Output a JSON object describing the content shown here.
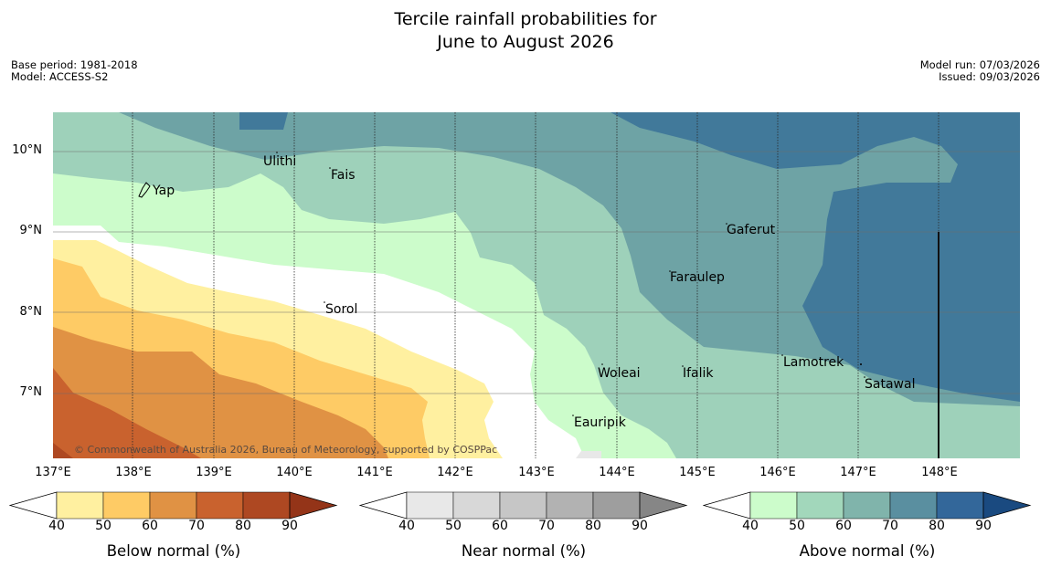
{
  "title_line1": "Tercile rainfall probabilities for",
  "title_line2": "June to August 2026",
  "base_period": "Base period: 1981-2018",
  "model": "Model: ACCESS-S2",
  "model_run": "Model run: 07/03/2026",
  "issued": "Issued: 09/03/2026",
  "copyright": "© Commonwealth of Australia 2026, Bureau of Meteorology, supported by COSPPac",
  "lat_labels": [
    "10°N",
    "9°N",
    "8°N",
    "7°N"
  ],
  "lon_labels": [
    "137°E",
    "138°E",
    "139°E",
    "140°E",
    "141°E",
    "142°E",
    "143°E",
    "144°E",
    "145°E",
    "146°E",
    "147°E",
    "148°E"
  ],
  "places": [
    {
      "name": "Ulithi"
    },
    {
      "name": "Yap"
    },
    {
      "name": "Fais"
    },
    {
      "name": "Gaferut"
    },
    {
      "name": "Faraulep"
    },
    {
      "name": "Sorol"
    },
    {
      "name": "Lamotrek"
    },
    {
      "name": "Woleai"
    },
    {
      "name": "Ifalik"
    },
    {
      "name": "Satawal"
    },
    {
      "name": "Eauripik"
    }
  ],
  "legends": [
    {
      "title": "Below normal (%)",
      "ticks": [
        "40",
        "50",
        "60",
        "70",
        "80",
        "90"
      ],
      "colors": [
        "#fff0a0",
        "#fecb65",
        "#e09244",
        "#c9622e",
        "#ae4822",
        "#943418"
      ]
    },
    {
      "title": "Near normal (%)",
      "ticks": [
        "40",
        "50",
        "60",
        "70",
        "80",
        "90"
      ],
      "colors": [
        "#e8e8e8",
        "#d8d8d8",
        "#c6c6c6",
        "#b2b2b2",
        "#9e9e9e",
        "#868686"
      ]
    },
    {
      "title": "Above normal (%)",
      "ticks": [
        "40",
        "50",
        "60",
        "70",
        "80",
        "90"
      ],
      "colors": [
        "#ccfccb",
        "#a2d7bb",
        "#80b4ab",
        "#5a8fa0",
        "#33679a",
        "#1a4a80"
      ]
    }
  ]
}
